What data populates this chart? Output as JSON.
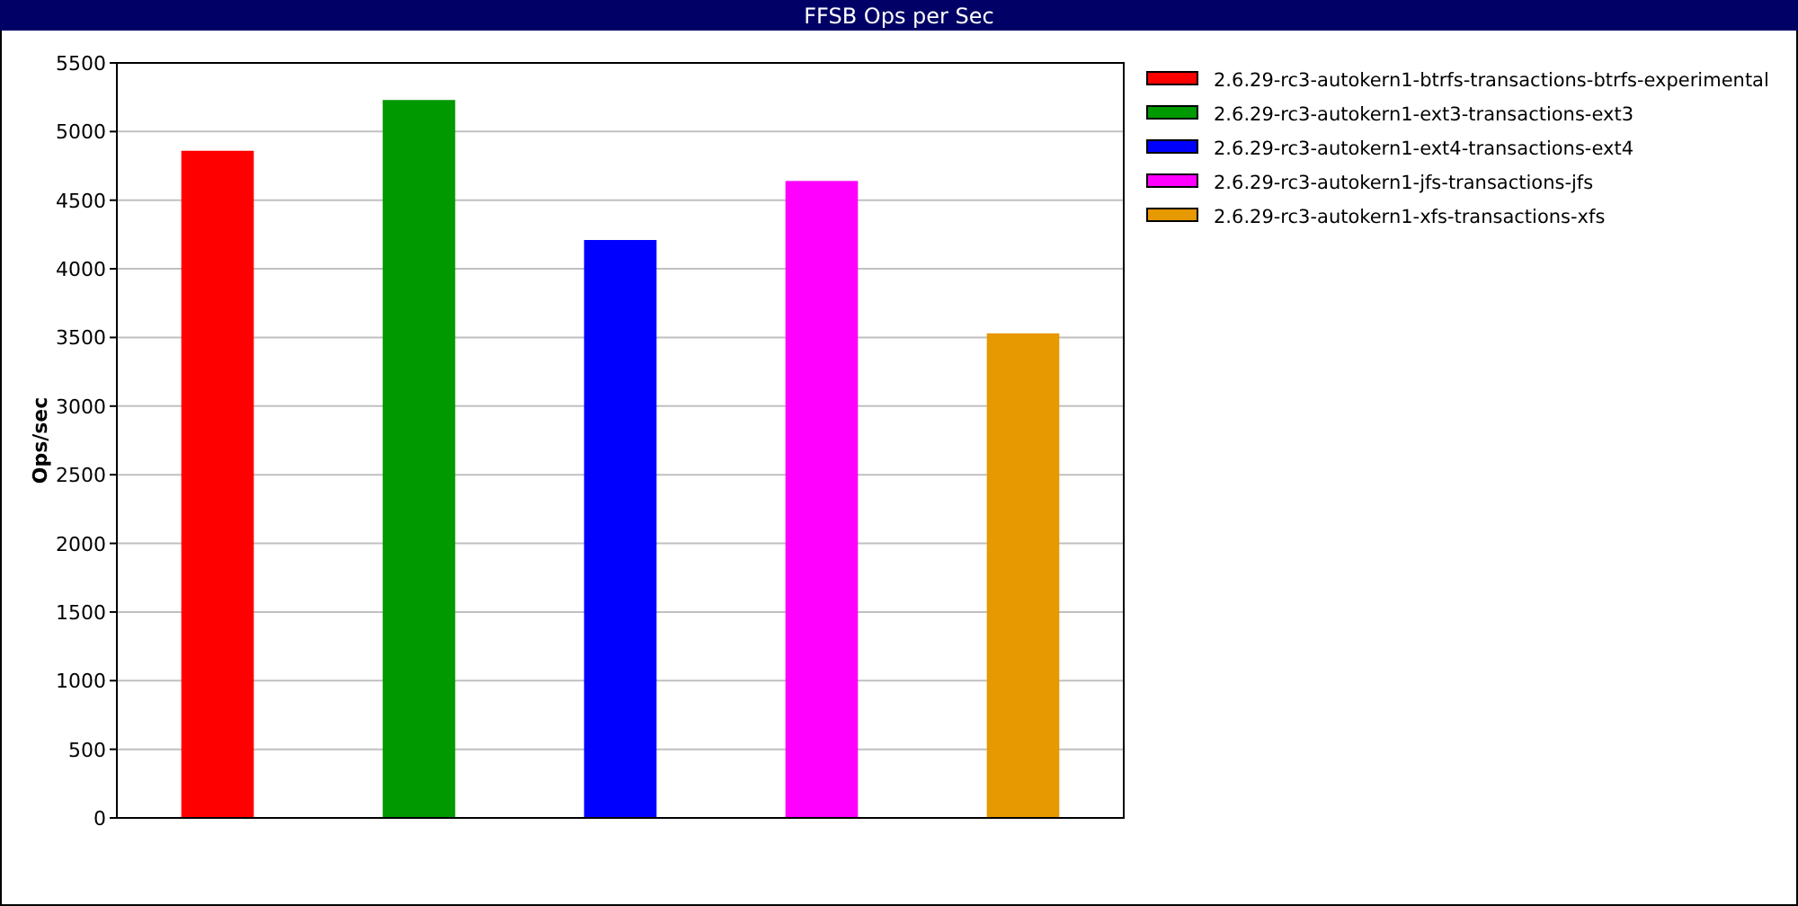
{
  "chart_data": {
    "type": "bar",
    "title": "FFSB Ops per Sec",
    "ylabel": "Ops/sec",
    "categories": [
      null
    ],
    "series": [
      {
        "name": "2.6.29-rc3-autokern1-btrfs-transactions-btrfs-experimental",
        "color": "#ff0000",
        "values": [
          4860
        ]
      },
      {
        "name": "2.6.29-rc3-autokern1-ext3-transactions-ext3",
        "color": "#009900",
        "values": [
          5230
        ]
      },
      {
        "name": "2.6.29-rc3-autokern1-ext4-transactions-ext4",
        "color": "#0000ff",
        "values": [
          4210
        ]
      },
      {
        "name": "2.6.29-rc3-autokern1-jfs-transactions-jfs",
        "color": "#ff00ff",
        "values": [
          4640
        ]
      },
      {
        "name": "2.6.29-rc3-autokern1-xfs-transactions-xfs",
        "color": "#e69900",
        "values": [
          3530
        ]
      }
    ],
    "ylim": [
      0,
      5500
    ],
    "yticks": [
      0,
      500,
      1000,
      1500,
      2000,
      2500,
      3000,
      3500,
      4000,
      4500,
      5000,
      5500
    ],
    "grid": "y",
    "legend": "right"
  }
}
